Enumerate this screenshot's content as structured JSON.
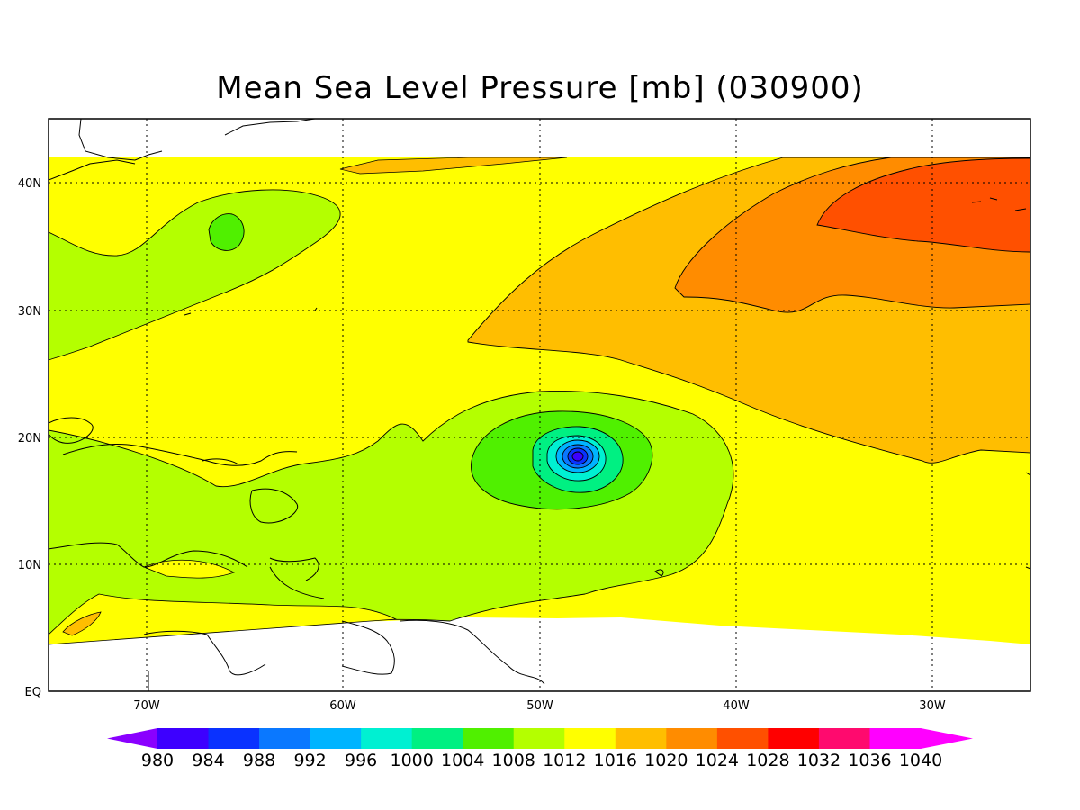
{
  "title": "Mean Sea Level Pressure [mb] (030900)",
  "lon_labels": [
    "70W",
    "60W",
    "50W",
    "40W",
    "30W"
  ],
  "lat_labels": [
    "40N",
    "30N",
    "20N",
    "10N",
    "EQ"
  ],
  "colorbar": {
    "labels": [
      "980",
      "984",
      "988",
      "992",
      "996",
      "1000",
      "1004",
      "1008",
      "1012",
      "1016",
      "1020",
      "1024",
      "1028",
      "1032",
      "1036",
      "1040"
    ],
    "colors": [
      "#8a00ff",
      "#3d00ff",
      "#0a32ff",
      "#0a78ff",
      "#00b4ff",
      "#00f0d2",
      "#00f082",
      "#50f000",
      "#b4ff00",
      "#ffff00",
      "#ffbe00",
      "#ff8c00",
      "#ff5000",
      "#ff0000",
      "#ff0a6e",
      "#ff00ff"
    ]
  },
  "chart_data": {
    "type": "heatmap",
    "title": "Mean Sea Level Pressure [mb] (030900)",
    "units": "mb",
    "contour_levels": [
      980,
      984,
      988,
      992,
      996,
      1000,
      1004,
      1008,
      1012,
      1016,
      1020,
      1024,
      1028,
      1032,
      1036,
      1040
    ],
    "xlim": [
      "75W",
      "25W"
    ],
    "ylim": [
      "EQ",
      "45N"
    ],
    "features": [
      {
        "name": "low-pressure center",
        "lon": "48W",
        "lat": "18.5N",
        "min_band": "<1000"
      },
      {
        "name": "high-pressure ridge",
        "lon": "30W",
        "lat": "38N",
        "max_band": "1024-1028"
      }
    ],
    "grid": true
  }
}
